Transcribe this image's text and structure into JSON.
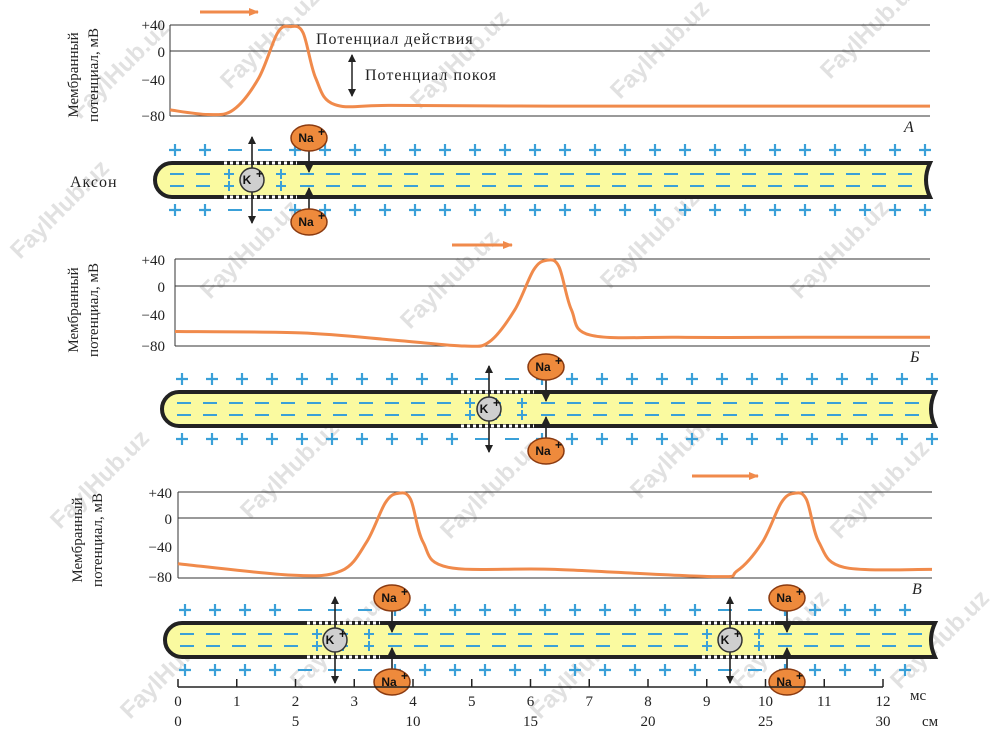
{
  "colors": {
    "trace": "#f08a4b",
    "axon_fill": "#fafaa0",
    "axon_border": "#222222",
    "charge": "#3aa0d8",
    "na_fill": "#ee8a3c",
    "k_fill": "#cfcfcf"
  },
  "watermark": "FaylHub.uz",
  "axon_label": "Аксон",
  "annotations": {
    "action_potential": "Потенциал действия",
    "resting_potential": "Потенциал покоя"
  },
  "ions": {
    "na": "Na",
    "k": "K",
    "plus": "+"
  },
  "bottom_axis": {
    "ms_ticks": [
      "0",
      "1",
      "2",
      "3",
      "4",
      "5",
      "6",
      "7",
      "8",
      "9",
      "10",
      "11",
      "12"
    ],
    "ms_unit": "мс",
    "cm_ticks": [
      "0",
      "5",
      "10",
      "15",
      "20",
      "25",
      "30"
    ],
    "cm_unit": "см"
  },
  "chart_data": [
    {
      "type": "line",
      "panel": "А",
      "ylabel_line1": "Мембранный",
      "ylabel_line2": "потенциал, мВ",
      "yticks": [
        "+40",
        "0",
        "−40",
        "−80"
      ],
      "ylim": [
        -80,
        40
      ],
      "xlim": [
        0,
        12
      ],
      "x": [
        0,
        0.6,
        1.0,
        1.4,
        1.7,
        1.9,
        2.1,
        2.3,
        2.6,
        3.5,
        6,
        9,
        12
      ],
      "y": [
        -72,
        -78,
        -72,
        -30,
        30,
        38,
        30,
        -30,
        -65,
        -66,
        -67,
        -67,
        -67
      ]
    },
    {
      "type": "line",
      "panel": "Б",
      "ylabel_line1": "Мембранный",
      "ylabel_line2": "потенциал, мВ",
      "yticks": [
        "+40",
        "0",
        "−40",
        "−80"
      ],
      "ylim": [
        -80,
        40
      ],
      "xlim": [
        0,
        12
      ],
      "x": [
        0,
        2,
        3.5,
        4.6,
        5.0,
        5.4,
        5.7,
        5.9,
        6.1,
        6.3,
        6.6,
        8,
        10,
        12
      ],
      "y": [
        -60,
        -62,
        -72,
        -80,
        -74,
        -30,
        25,
        38,
        30,
        -30,
        -65,
        -68,
        -68,
        -68
      ]
    },
    {
      "type": "line",
      "panel": "В",
      "ylabel_line1": "Мембранный",
      "ylabel_line2": "потенциал, мВ",
      "yticks": [
        "+40",
        "0",
        "−40",
        "−80"
      ],
      "ylim": [
        -80,
        40
      ],
      "xlim": [
        0,
        12
      ],
      "x": [
        0,
        1.8,
        2.6,
        3.0,
        3.3,
        3.5,
        3.7,
        3.9,
        4.3,
        6,
        8.5,
        8.9,
        9.3,
        9.6,
        9.8,
        10.0,
        10.2,
        10.6,
        12
      ],
      "y": [
        -60,
        -76,
        -70,
        -30,
        25,
        38,
        30,
        -30,
        -65,
        -68,
        -78,
        -70,
        -30,
        25,
        38,
        30,
        -30,
        -65,
        -68
      ]
    }
  ]
}
